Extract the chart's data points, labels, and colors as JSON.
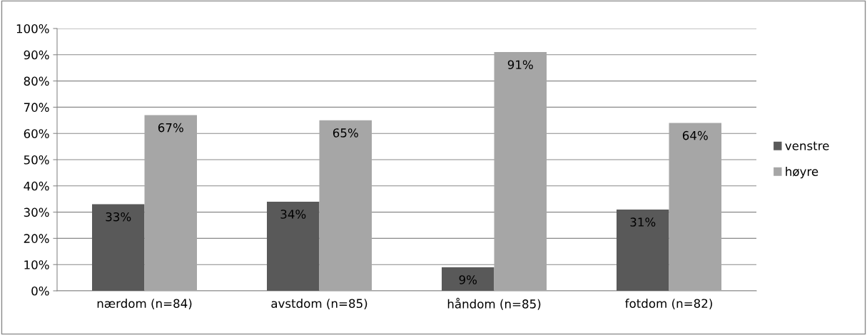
{
  "chart_data": {
    "type": "bar",
    "categories": [
      "nærdom (n=84)",
      "avstdom (n=85)",
      "håndom (n=85)",
      "fotdom (n=82)"
    ],
    "series": [
      {
        "name": "venstre",
        "color": "#595959",
        "values": [
          33,
          34,
          9,
          31
        ],
        "value_labels": [
          "33%",
          "34%",
          "9%",
          "31%"
        ]
      },
      {
        "name": "høyre",
        "color": "#a6a6a6",
        "values": [
          67,
          65,
          91,
          64
        ],
        "value_labels": [
          "67%",
          "65%",
          "91%",
          "64%"
        ]
      }
    ],
    "ylim": [
      0,
      100
    ],
    "yticks": [
      {
        "value": 0,
        "label": "0%"
      },
      {
        "value": 10,
        "label": "10%"
      },
      {
        "value": 20,
        "label": "20%"
      },
      {
        "value": 30,
        "label": "30%"
      },
      {
        "value": 40,
        "label": "40%"
      },
      {
        "value": 50,
        "label": "50%"
      },
      {
        "value": 60,
        "label": "60%"
      },
      {
        "value": 70,
        "label": "70%"
      },
      {
        "value": 80,
        "label": "80%"
      },
      {
        "value": 90,
        "label": "90%"
      },
      {
        "value": 100,
        "label": "100%"
      }
    ],
    "grid": "y",
    "legend": "right"
  }
}
